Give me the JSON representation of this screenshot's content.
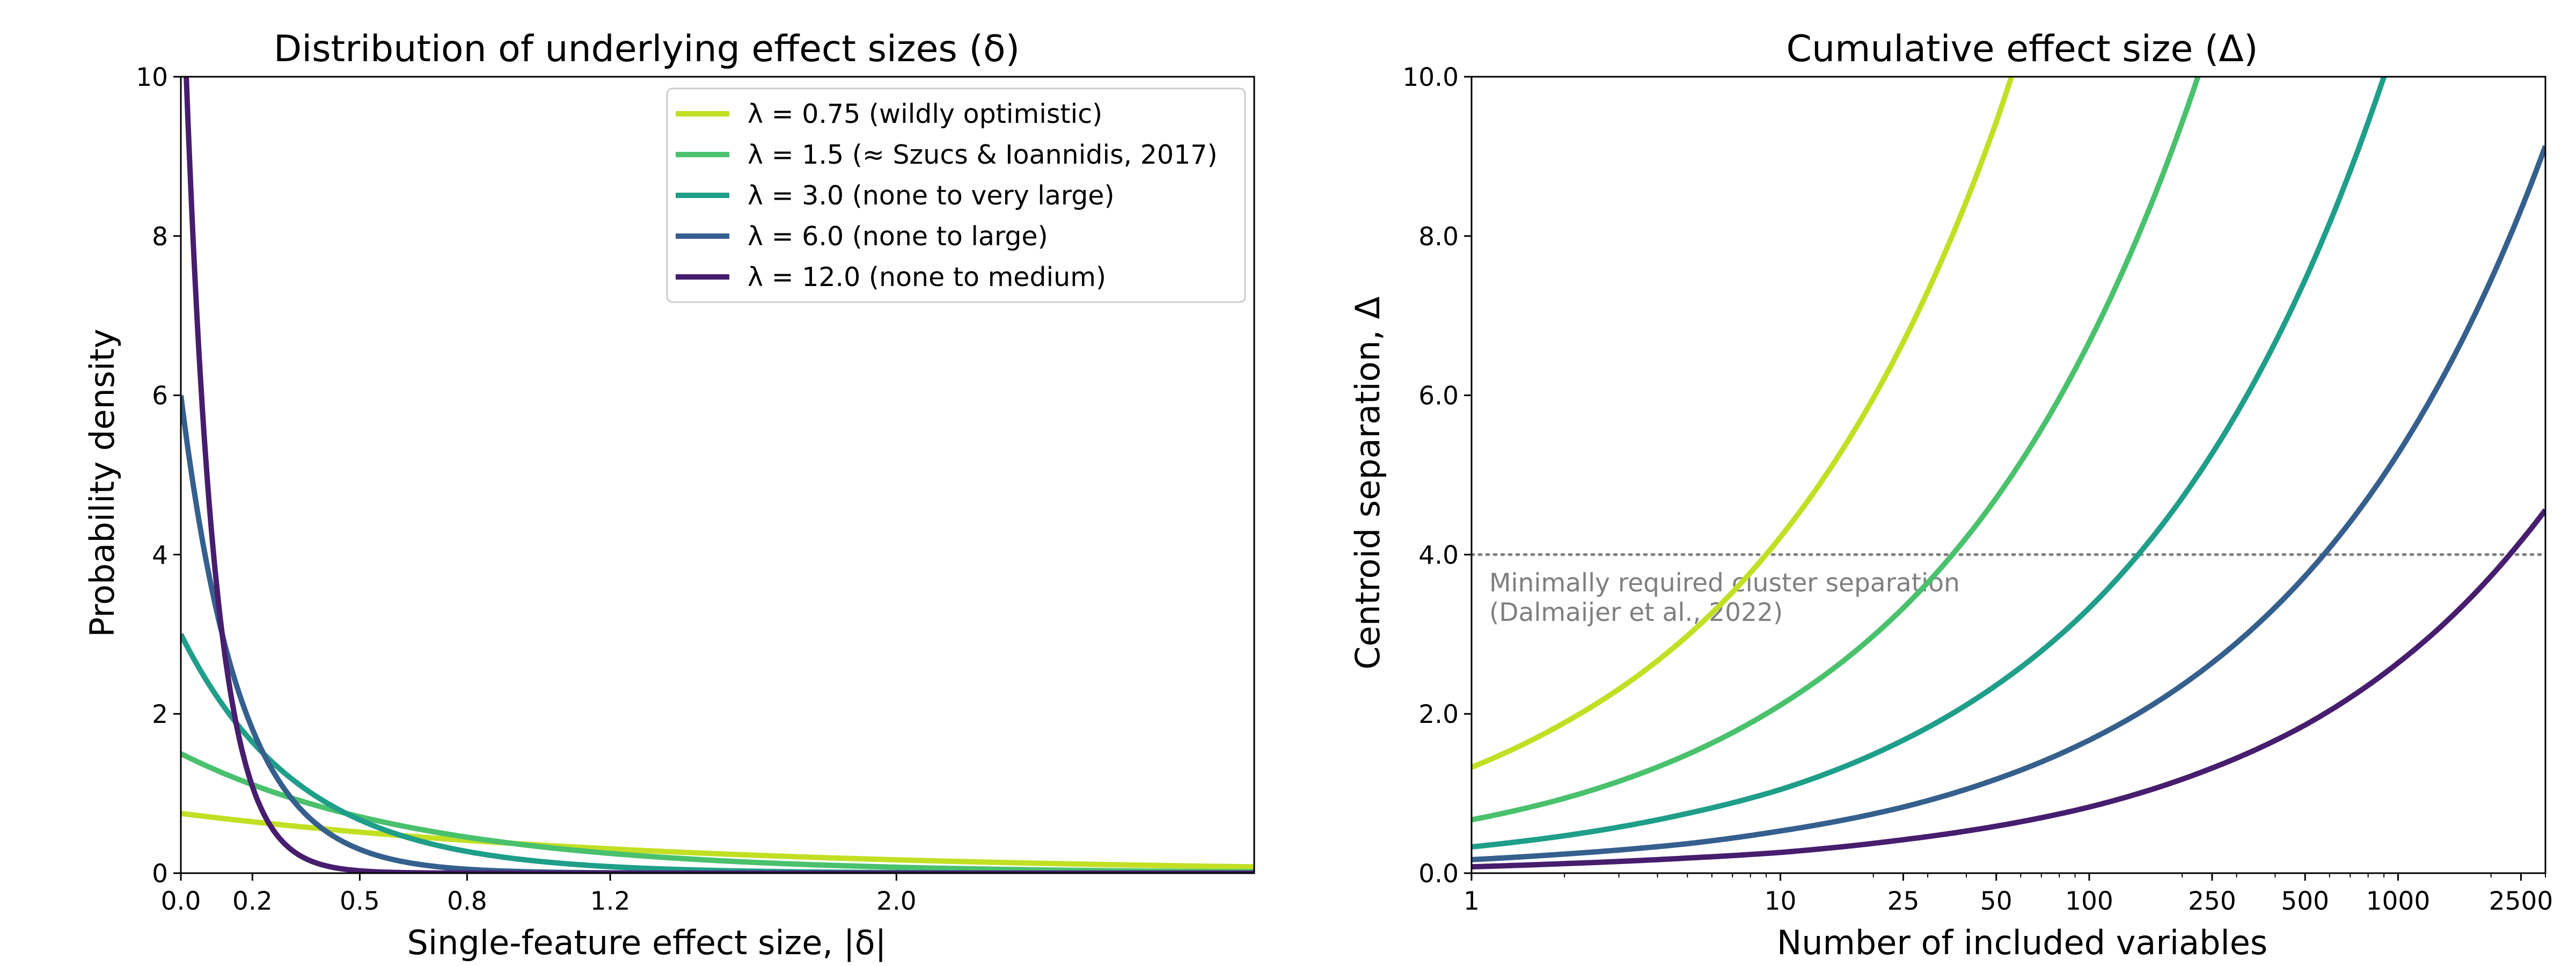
{
  "chart_data": [
    {
      "type": "line",
      "title": "Distribution of underlying effect sizes (δ)",
      "xlabel": "Single-feature effect size, |δ|",
      "ylabel": "Probability density",
      "xlim": [
        0,
        3.0
      ],
      "ylim": [
        0,
        10
      ],
      "xticks": [
        0.0,
        0.2,
        0.5,
        0.8,
        1.2,
        2.0
      ],
      "xtick_labels": [
        "0.0",
        "0.2",
        "0.5",
        "0.8",
        "1.2",
        "2.0"
      ],
      "yticks": [
        0,
        2,
        4,
        6,
        8,
        10
      ],
      "ytick_labels": [
        "0",
        "2",
        "4",
        "6",
        "8",
        "10"
      ],
      "grid": false,
      "legend_position": "top-right",
      "series": [
        {
          "name": "λ = 0.75 (wildly optimistic)",
          "lambda": 0.75,
          "color": "#c2df23"
        },
        {
          "name": "λ = 1.5 (≈ Szucs & Ioannidis, 2017)",
          "lambda": 1.5,
          "color": "#4ac16d"
        },
        {
          "name": "λ = 3.0 (none to very large)",
          "lambda": 3.0,
          "color": "#1f9e89"
        },
        {
          "name": "λ = 6.0 (none to large)",
          "lambda": 6.0,
          "color": "#355f8d"
        },
        {
          "name": "λ = 12.0 (none to medium)",
          "lambda": 12.0,
          "color": "#471d6e"
        }
      ],
      "density_function": "λ·exp(−λ·|δ|)"
    },
    {
      "type": "line",
      "title": "Cumulative effect size (Δ)",
      "xlabel": "Number of included variables",
      "ylabel": "Centroid separation, Δ",
      "x_scale": "log",
      "xlim": [
        1,
        3000
      ],
      "ylim": [
        0,
        10
      ],
      "xticks": [
        1,
        10,
        25,
        50,
        100,
        250,
        500,
        1000,
        2500
      ],
      "xtick_labels": [
        "1",
        "10",
        "25",
        "50",
        "100",
        "250",
        "500",
        "1000",
        "2500"
      ],
      "yticks": [
        0,
        2,
        4,
        6,
        8,
        10
      ],
      "ytick_labels": [
        "0.0",
        "2.0",
        "4.0",
        "6.0",
        "8.0",
        "10.0"
      ],
      "grid": false,
      "threshold_line": {
        "y": 4.0,
        "style": "dotted",
        "color": "#7f7f7f"
      },
      "annotation": [
        "Minimally required cluster separation",
        "(Dalmaijer et al., 2022)"
      ],
      "series": [
        {
          "lambda": 0.75,
          "color": "#c2df23",
          "x": [
            1,
            2,
            5,
            10,
            25,
            50,
            56
          ],
          "y": [
            1.33,
            1.89,
            2.98,
            4.22,
            6.67,
            9.43,
            10.0
          ]
        },
        {
          "lambda": 1.5,
          "color": "#4ac16d",
          "x": [
            1,
            2,
            5,
            10,
            25,
            50,
            100,
            225
          ],
          "y": [
            0.67,
            0.94,
            1.49,
            2.11,
            3.33,
            4.71,
            6.67,
            10.0
          ]
        },
        {
          "lambda": 3.0,
          "color": "#1f9e89",
          "x": [
            1,
            2,
            5,
            10,
            25,
            50,
            100,
            250,
            500,
            900
          ],
          "y": [
            0.33,
            0.47,
            0.75,
            1.05,
            1.67,
            2.36,
            3.33,
            5.27,
            7.45,
            10.0
          ]
        },
        {
          "lambda": 6.0,
          "color": "#355f8d",
          "x": [
            1,
            2,
            5,
            10,
            25,
            50,
            100,
            250,
            500,
            1000,
            2500,
            3000
          ],
          "y": [
            0.17,
            0.24,
            0.37,
            0.53,
            0.83,
            1.18,
            1.67,
            2.64,
            3.73,
            5.27,
            8.33,
            9.13
          ]
        },
        {
          "lambda": 12.0,
          "color": "#471d6e",
          "x": [
            1,
            2,
            5,
            10,
            25,
            50,
            100,
            250,
            500,
            1000,
            2500,
            3000
          ],
          "y": [
            0.08,
            0.12,
            0.19,
            0.26,
            0.42,
            0.59,
            0.83,
            1.32,
            1.86,
            2.64,
            4.17,
            4.56
          ]
        }
      ]
    }
  ]
}
